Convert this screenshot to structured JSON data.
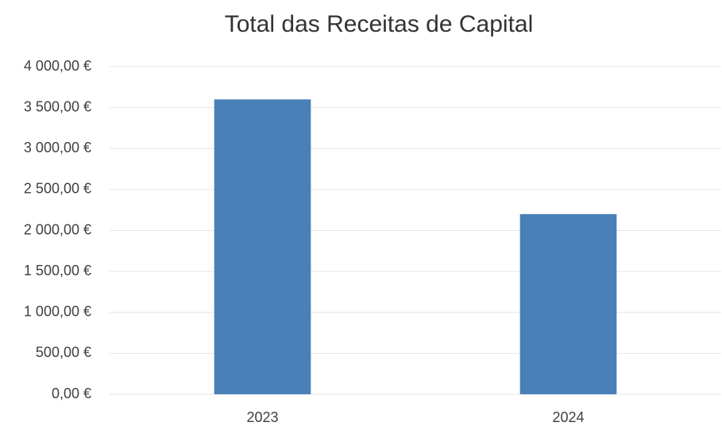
{
  "chart_data": {
    "type": "bar",
    "title": "Total das Receitas de Capital",
    "categories": [
      "2023",
      "2024"
    ],
    "values": [
      3600,
      2200
    ],
    "color": "#4a80b8",
    "ylim": [
      0,
      4000
    ],
    "yticks": [
      {
        "value": 0,
        "label": "0,00 €"
      },
      {
        "value": 500,
        "label": "500,00 €"
      },
      {
        "value": 1000,
        "label": "1 000,00 €"
      },
      {
        "value": 1500,
        "label": "1 500,00 €"
      },
      {
        "value": 2000,
        "label": "2 000,00 €"
      },
      {
        "value": 2500,
        "label": "2 500,00 €"
      },
      {
        "value": 3000,
        "label": "3 000,00 €"
      },
      {
        "value": 3500,
        "label": "3 500,00 €"
      },
      {
        "value": 4000,
        "label": "4 000,00 €"
      }
    ],
    "grid": true
  }
}
